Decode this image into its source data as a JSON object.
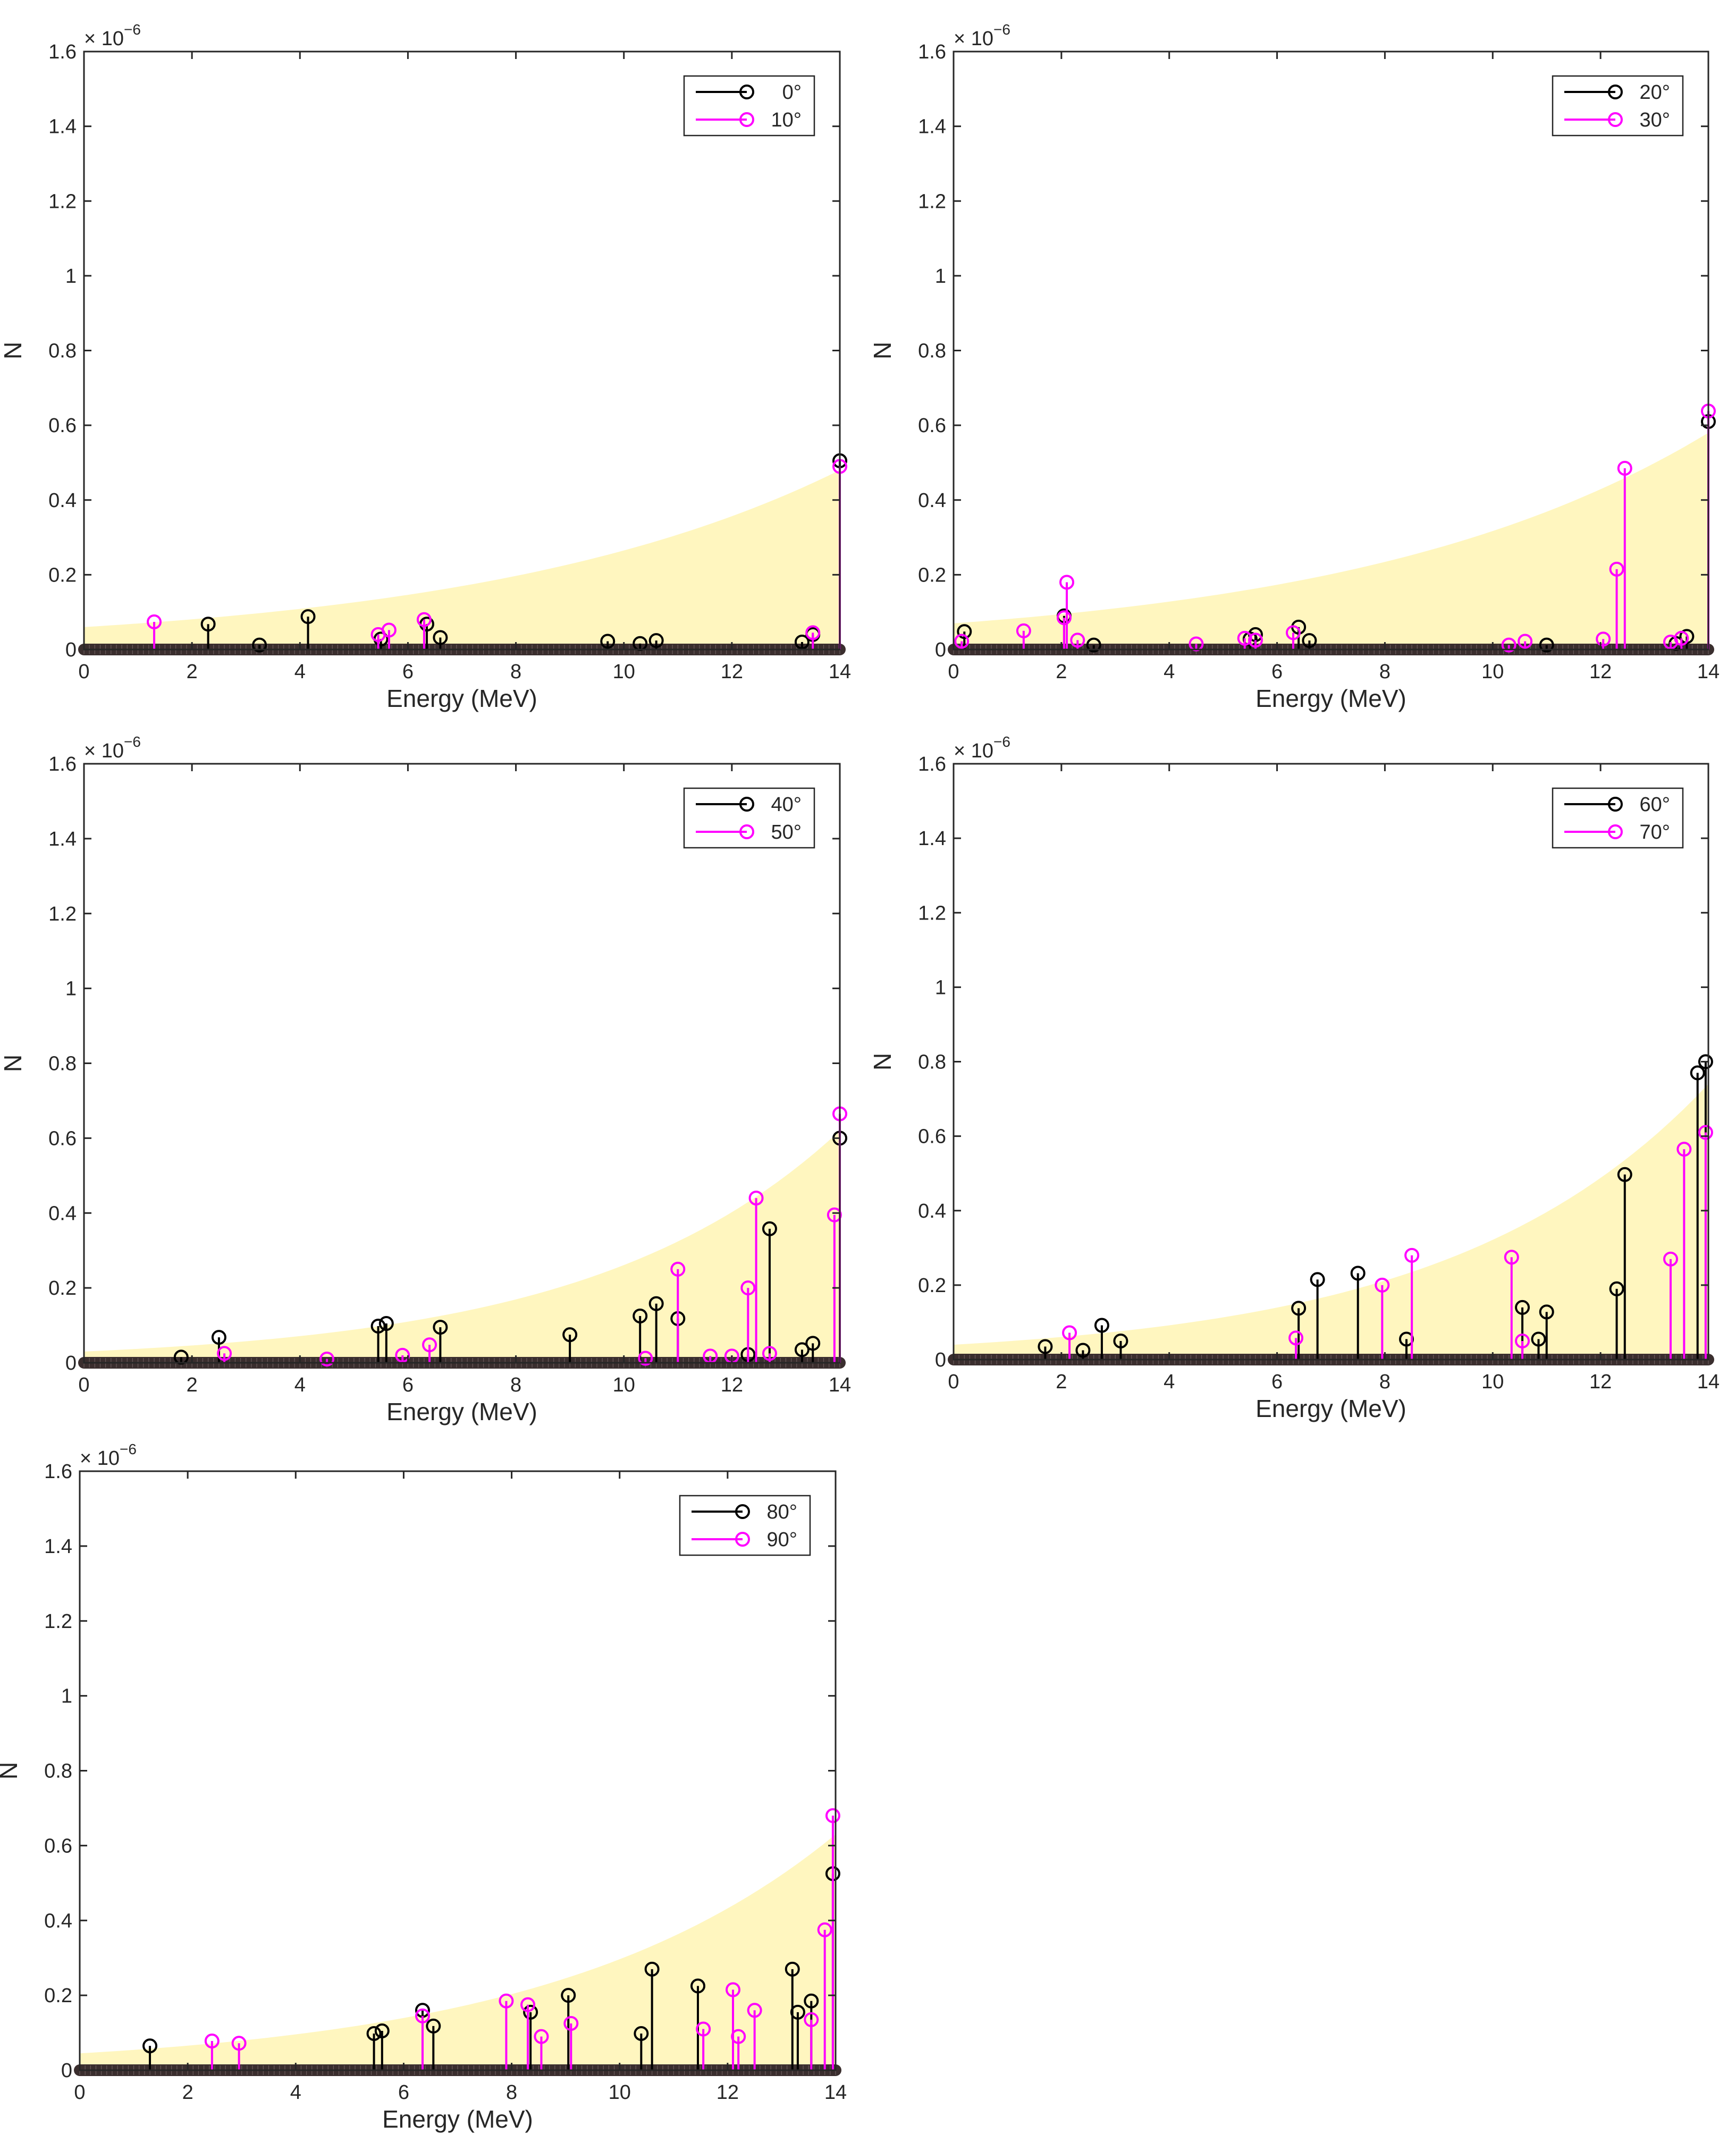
{
  "figure": {
    "layout": "five stem plots arranged in a 2-column grid"
  },
  "shared": {
    "xlabel": "Energy (MeV)",
    "ylabel": "N",
    "xlim": [
      0,
      14
    ],
    "ylim": [
      0,
      1.6
    ],
    "xticks": [
      0,
      2,
      4,
      6,
      8,
      10,
      12,
      14
    ],
    "yticks": [
      0,
      0.2,
      0.4,
      0.6,
      0.8,
      1,
      1.2,
      1.4,
      1.6
    ],
    "ytick_labels": [
      "0",
      "0.2",
      "0.4",
      "0.6",
      "0.8",
      "1",
      "1.2",
      "1.4",
      "1.6"
    ],
    "exponent_base": "× 10",
    "exponent_power": "−6",
    "colors": {
      "series_a": "#000000",
      "series_b": "#ff00ff",
      "band": "#fff6bf",
      "baseline": "#3a2e2e"
    }
  },
  "chart_data": [
    {
      "type": "stem",
      "band": {
        "start": 0.06,
        "end": 0.48
      },
      "series": [
        {
          "name": "0°",
          "color": "#000000",
          "points": [
            [
              2.3,
              0.068
            ],
            [
              3.25,
              0.012
            ],
            [
              4.15,
              0.088
            ],
            [
              5.5,
              0.028
            ],
            [
              6.35,
              0.068
            ],
            [
              6.6,
              0.032
            ],
            [
              9.7,
              0.022
            ],
            [
              10.3,
              0.016
            ],
            [
              10.6,
              0.024
            ],
            [
              13.3,
              0.02
            ],
            [
              13.5,
              0.04
            ],
            [
              14.0,
              0.505
            ]
          ]
        },
        {
          "name": "10°",
          "color": "#ff00ff",
          "points": [
            [
              1.3,
              0.074
            ],
            [
              5.45,
              0.04
            ],
            [
              5.65,
              0.052
            ],
            [
              6.3,
              0.08
            ],
            [
              13.5,
              0.045
            ],
            [
              14.0,
              0.49
            ]
          ]
        }
      ]
    },
    {
      "type": "stem",
      "band": {
        "start": 0.07,
        "end": 0.58
      },
      "series": [
        {
          "name": "20°",
          "color": "#000000",
          "points": [
            [
              0.2,
              0.048
            ],
            [
              2.05,
              0.09
            ],
            [
              2.6,
              0.012
            ],
            [
              5.5,
              0.028
            ],
            [
              5.6,
              0.04
            ],
            [
              6.4,
              0.06
            ],
            [
              6.6,
              0.024
            ],
            [
              11.0,
              0.012
            ],
            [
              13.4,
              0.016
            ],
            [
              13.6,
              0.035
            ],
            [
              14.0,
              0.61
            ]
          ]
        },
        {
          "name": "30°",
          "color": "#ff00ff",
          "points": [
            [
              0.15,
              0.022
            ],
            [
              1.3,
              0.05
            ],
            [
              2.05,
              0.085
            ],
            [
              2.1,
              0.18
            ],
            [
              2.3,
              0.025
            ],
            [
              4.5,
              0.015
            ],
            [
              5.4,
              0.03
            ],
            [
              5.6,
              0.025
            ],
            [
              6.3,
              0.045
            ],
            [
              10.3,
              0.012
            ],
            [
              10.6,
              0.022
            ],
            [
              12.05,
              0.028
            ],
            [
              12.3,
              0.215
            ],
            [
              12.45,
              0.485
            ],
            [
              13.3,
              0.02
            ],
            [
              13.5,
              0.03
            ],
            [
              14.0,
              0.638
            ]
          ]
        }
      ]
    },
    {
      "type": "stem",
      "band": {
        "start": 0.03,
        "end": 0.62
      },
      "series": [
        {
          "name": "40°",
          "color": "#000000",
          "points": [
            [
              1.8,
              0.015
            ],
            [
              2.5,
              0.068
            ],
            [
              5.45,
              0.098
            ],
            [
              5.6,
              0.105
            ],
            [
              6.6,
              0.095
            ],
            [
              9.0,
              0.075
            ],
            [
              10.3,
              0.125
            ],
            [
              10.6,
              0.158
            ],
            [
              11.0,
              0.118
            ],
            [
              12.3,
              0.022
            ],
            [
              12.7,
              0.358
            ],
            [
              13.3,
              0.035
            ],
            [
              13.5,
              0.052
            ],
            [
              14.0,
              0.6
            ]
          ]
        },
        {
          "name": "50°",
          "color": "#ff00ff",
          "points": [
            [
              2.6,
              0.025
            ],
            [
              4.5,
              0.01
            ],
            [
              5.9,
              0.02
            ],
            [
              6.4,
              0.048
            ],
            [
              10.4,
              0.012
            ],
            [
              11.0,
              0.25
            ],
            [
              11.6,
              0.018
            ],
            [
              12.0,
              0.018
            ],
            [
              12.3,
              0.2
            ],
            [
              12.45,
              0.44
            ],
            [
              12.7,
              0.025
            ],
            [
              13.9,
              0.395
            ],
            [
              14.0,
              0.665
            ]
          ]
        }
      ]
    },
    {
      "type": "stem",
      "band": {
        "start": 0.04,
        "end": 0.74
      },
      "series": [
        {
          "name": "60°",
          "color": "#000000",
          "points": [
            [
              1.7,
              0.035
            ],
            [
              2.4,
              0.025
            ],
            [
              2.75,
              0.092
            ],
            [
              3.1,
              0.05
            ],
            [
              6.4,
              0.138
            ],
            [
              6.75,
              0.215
            ],
            [
              7.5,
              0.232
            ],
            [
              8.4,
              0.055
            ],
            [
              10.55,
              0.14
            ],
            [
              10.85,
              0.055
            ],
            [
              11.0,
              0.128
            ],
            [
              12.3,
              0.19
            ],
            [
              12.45,
              0.497
            ],
            [
              13.8,
              0.77
            ],
            [
              13.95,
              0.8
            ]
          ]
        },
        {
          "name": "70°",
          "color": "#ff00ff",
          "points": [
            [
              2.15,
              0.072
            ],
            [
              6.35,
              0.058
            ],
            [
              7.95,
              0.2
            ],
            [
              8.5,
              0.28
            ],
            [
              10.35,
              0.275
            ],
            [
              10.55,
              0.05
            ],
            [
              13.3,
              0.27
            ],
            [
              13.55,
              0.565
            ],
            [
              13.95,
              0.61
            ]
          ]
        }
      ]
    },
    {
      "type": "stem",
      "band": {
        "start": 0.045,
        "end": 0.63
      },
      "series": [
        {
          "name": "80°",
          "color": "#000000",
          "points": [
            [
              1.3,
              0.065
            ],
            [
              5.45,
              0.098
            ],
            [
              5.6,
              0.105
            ],
            [
              6.35,
              0.16
            ],
            [
              6.55,
              0.118
            ],
            [
              8.35,
              0.155
            ],
            [
              9.05,
              0.2
            ],
            [
              10.4,
              0.098
            ],
            [
              10.6,
              0.27
            ],
            [
              11.45,
              0.225
            ],
            [
              13.2,
              0.27
            ],
            [
              13.3,
              0.155
            ],
            [
              13.55,
              0.185
            ],
            [
              13.95,
              0.525
            ]
          ]
        },
        {
          "name": "90°",
          "color": "#ff00ff",
          "points": [
            [
              2.45,
              0.078
            ],
            [
              2.95,
              0.072
            ],
            [
              6.35,
              0.145
            ],
            [
              7.9,
              0.185
            ],
            [
              8.3,
              0.175
            ],
            [
              8.55,
              0.09
            ],
            [
              9.1,
              0.125
            ],
            [
              11.55,
              0.11
            ],
            [
              12.1,
              0.215
            ],
            [
              12.2,
              0.09
            ],
            [
              12.5,
              0.16
            ],
            [
              13.55,
              0.135
            ],
            [
              13.8,
              0.375
            ],
            [
              13.95,
              0.68
            ]
          ]
        }
      ]
    }
  ]
}
